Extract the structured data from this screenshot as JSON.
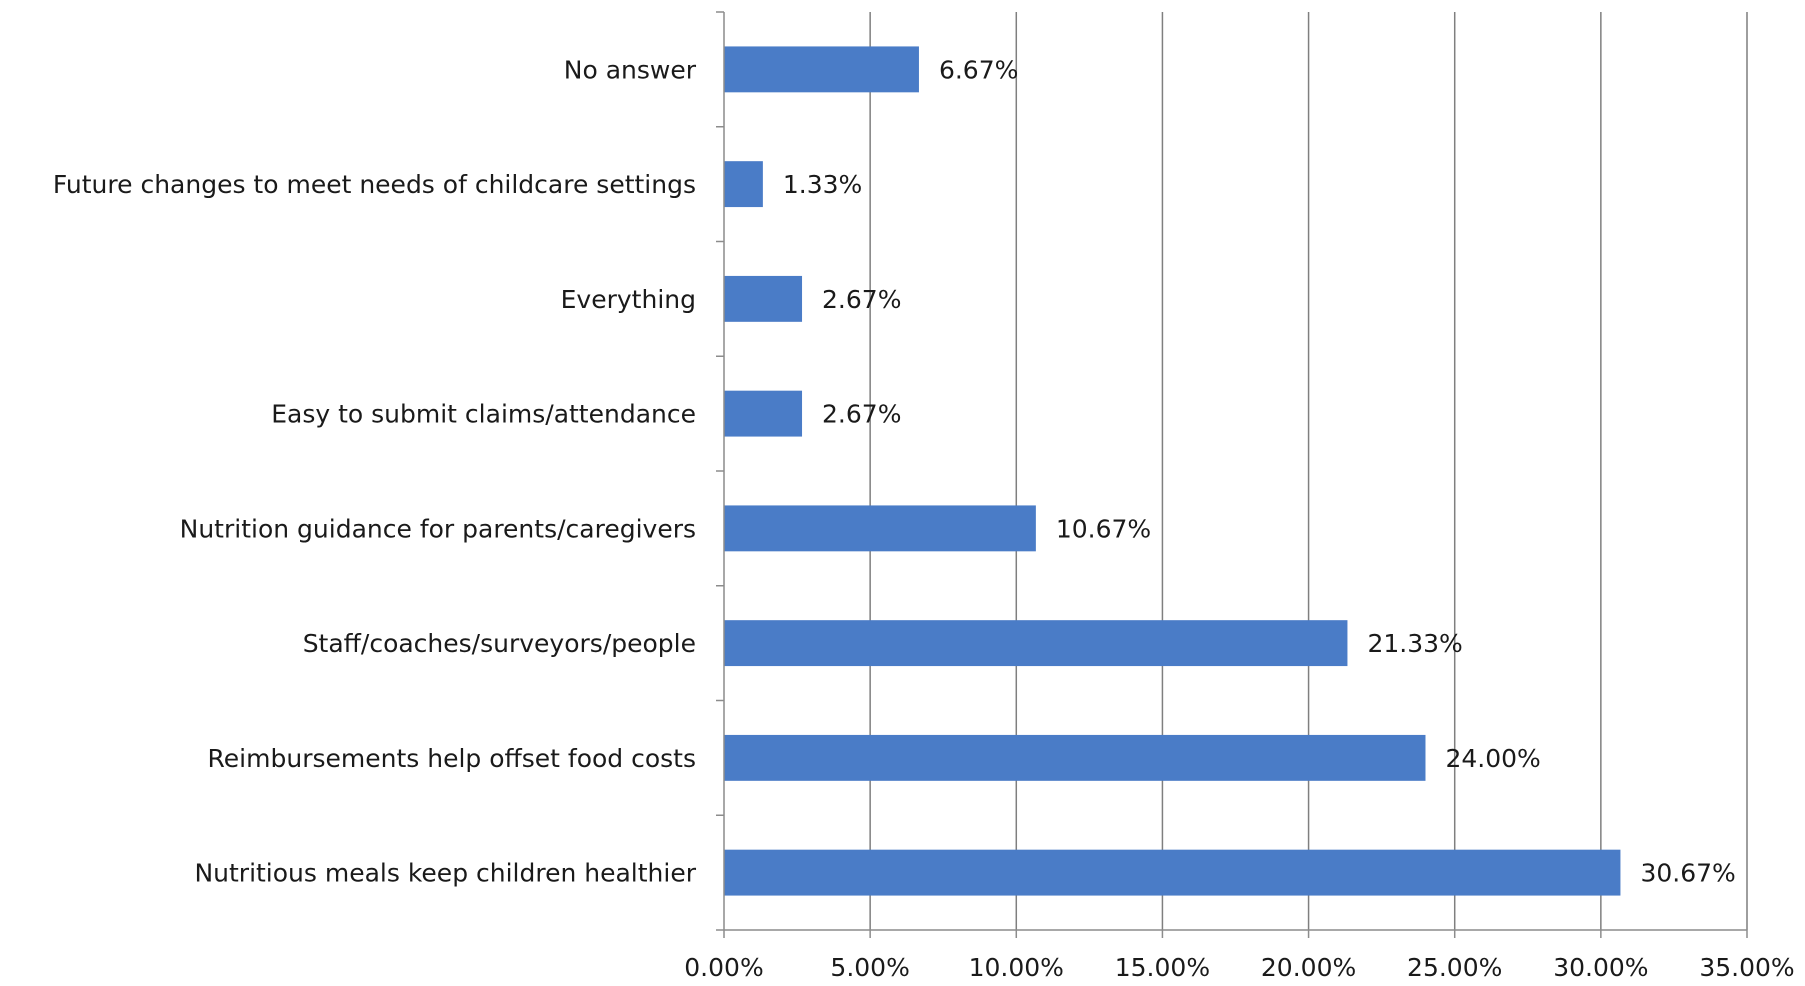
{
  "chart_data": {
    "type": "bar",
    "orientation": "horizontal",
    "categories": [
      "No answer",
      "Future changes to meet needs of childcare settings",
      "Everything",
      "Easy to submit claims/attendance",
      "Nutrition guidance for parents/caregivers",
      "Staff/coaches/surveyors/people",
      "Reimbursements help offset food costs",
      "Nutritious meals keep children healthier"
    ],
    "values": [
      6.67,
      1.33,
      2.67,
      2.67,
      10.67,
      21.33,
      24.0,
      30.67
    ],
    "data_labels": [
      "6.67%",
      "1.33%",
      "2.67%",
      "2.67%",
      "10.67%",
      "21.33%",
      "24.00%",
      "30.67%"
    ],
    "x_ticks": [
      "0.00%",
      "5.00%",
      "10.00%",
      "15.00%",
      "20.00%",
      "25.00%",
      "30.00%",
      "35.00%"
    ],
    "xlim": [
      0,
      35
    ],
    "title": "",
    "xlabel": "",
    "ylabel": "",
    "grid": "vertical",
    "legend": "none",
    "bar_color": "#4a7cc7",
    "grid_color": "#7f7f7f",
    "axis_color": "#8c8c8c"
  }
}
